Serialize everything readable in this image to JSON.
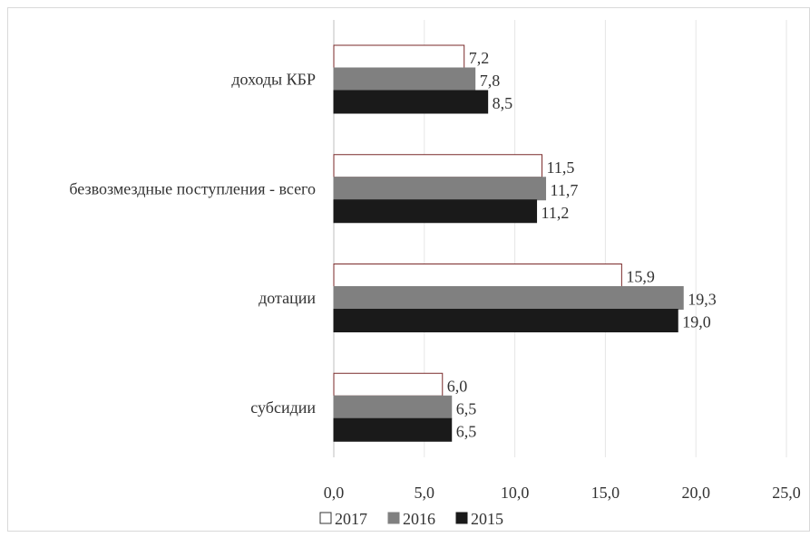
{
  "chart_data": {
    "type": "bar",
    "orientation": "horizontal",
    "categories": [
      "доходы КБР",
      "безвозмездные поступления - всего",
      "дотации",
      "субсидии"
    ],
    "series": [
      {
        "name": "2017",
        "values": [
          7.2,
          11.5,
          15.9,
          6.0
        ],
        "labels": [
          "7,2",
          "11,5",
          "15,9",
          "6,0"
        ],
        "color": "#ffffff",
        "stroke": "#7a2a2a"
      },
      {
        "name": "2016",
        "values": [
          7.8,
          11.7,
          19.3,
          6.5
        ],
        "labels": [
          "7,8",
          "11,7",
          "19,3",
          "6,5"
        ],
        "color": "#808080",
        "stroke": "#808080"
      },
      {
        "name": "2015",
        "values": [
          8.5,
          11.2,
          19.0,
          6.5
        ],
        "labels": [
          "8,5",
          "11,2",
          "19,0",
          "6,5"
        ],
        "color": "#1a1a1a",
        "stroke": "#1a1a1a"
      }
    ],
    "xlim": [
      0,
      25
    ],
    "ticks": [
      0,
      5,
      10,
      15,
      20,
      25
    ],
    "tick_labels": [
      "0,0",
      "5,0",
      "10,0",
      "15,0",
      "20,0",
      "25,0"
    ],
    "grid": true,
    "legend": {
      "position": "bottom",
      "entries": [
        "2017",
        "2016",
        "2015"
      ]
    },
    "title": "",
    "xlabel": "",
    "ylabel": ""
  }
}
